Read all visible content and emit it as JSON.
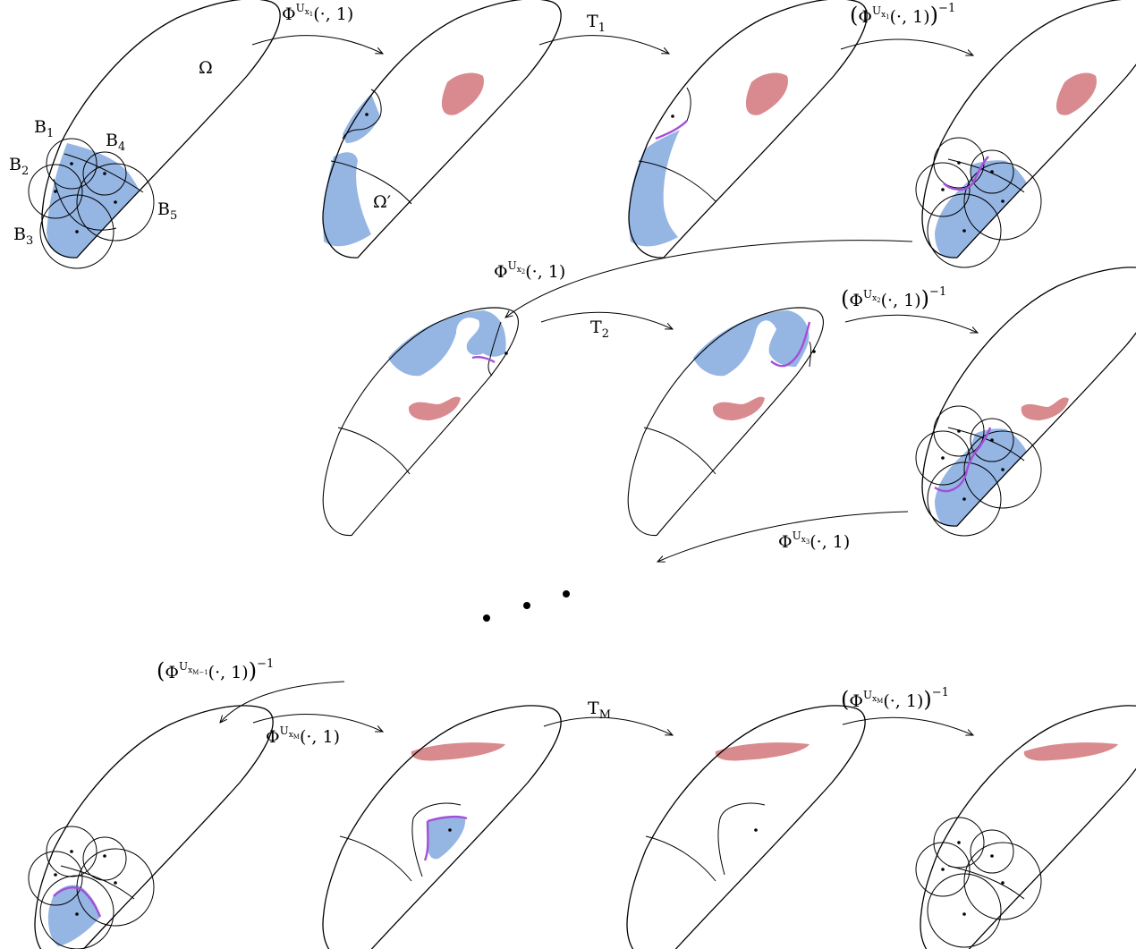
{
  "colors": {
    "blue_region": "#95b5e3",
    "red_region": "#d98a8e",
    "purple_boundary": "#a44fd9",
    "outline": "#000000"
  },
  "domain_labels": {
    "omega": "Ω",
    "omega_prime": "Ω′"
  },
  "ball_labels": [
    "B",
    "B",
    "B",
    "B",
    "B"
  ],
  "ball_indices": [
    "1",
    "2",
    "3",
    "4",
    "5"
  ],
  "row1": {
    "arrow1": {
      "base": "Φ",
      "sup": "U",
      "subsup": "x",
      "subsubsup": "1",
      "args": "(·, 1)"
    },
    "arrow2": {
      "base": "T",
      "sub": "1"
    },
    "arrow3": {
      "base": "Φ",
      "sup": "U",
      "subsup": "x",
      "subsubsup": "1",
      "args": "(·, 1)",
      "exp": "−1"
    }
  },
  "row2": {
    "arrow_in": {
      "base": "Φ",
      "sup": "U",
      "subsup": "x",
      "subsubsup": "2",
      "args": "(·, 1)"
    },
    "arrow1": {
      "base": "T",
      "sub": "2"
    },
    "arrow2": {
      "base": "Φ",
      "sup": "U",
      "subsup": "x",
      "subsubsup": "2",
      "args": "(·, 1)",
      "exp": "−1"
    },
    "arrow_out": {
      "base": "Φ",
      "sup": "U",
      "subsup": "x",
      "subsubsup": "3",
      "args": "(·, 1)"
    }
  },
  "ellipsis": "• • •",
  "row3": {
    "arrow_in": {
      "base": "Φ",
      "sup": "U",
      "subsup": "x",
      "subsubsup": "M−1",
      "args": "(·, 1)",
      "exp": "−1"
    },
    "arrow1": {
      "base": "Φ",
      "sup": "U",
      "subsup": "x",
      "subsubsup": "M",
      "args": "(·, 1)"
    },
    "arrow2": {
      "base": "T",
      "sub": "M"
    },
    "arrow3": {
      "base": "Φ",
      "sup": "U",
      "subsup": "x",
      "subsubsup": "M",
      "args": "(·, 1)",
      "exp": "−1"
    }
  }
}
